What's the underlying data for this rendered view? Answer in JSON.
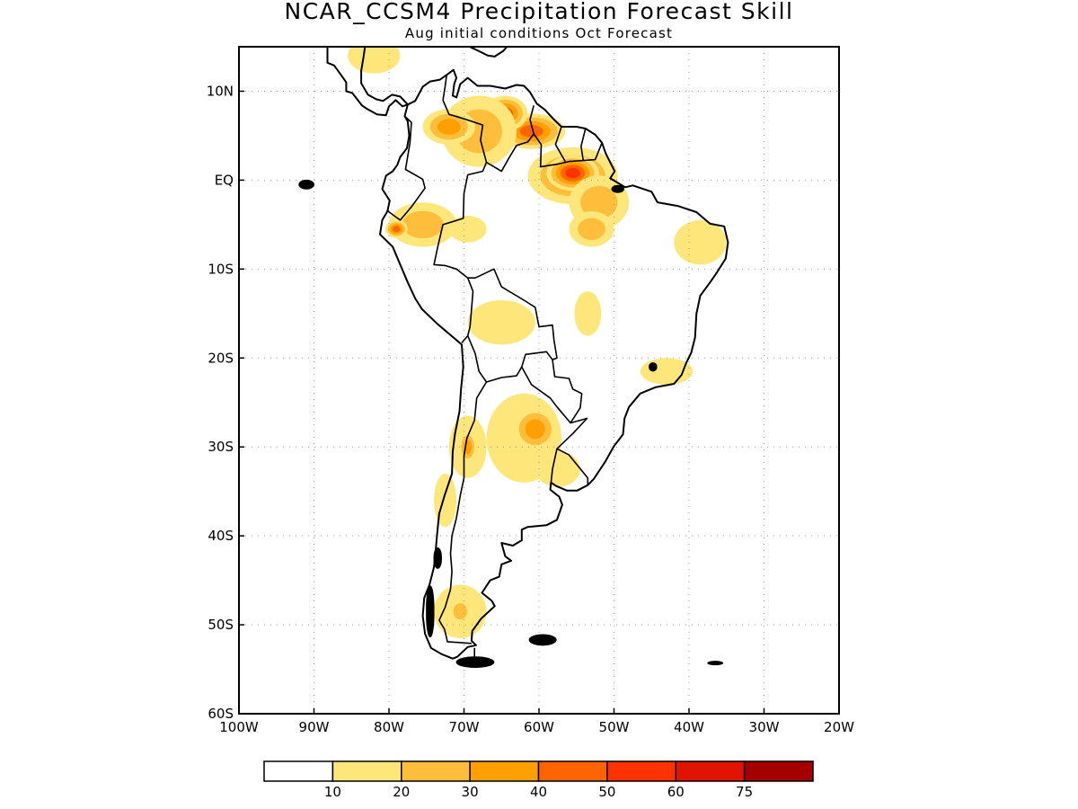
{
  "title": "NCAR_CCSM4 Precipitation Forecast Skill",
  "subtitle": "Aug initial conditions  Oct Forecast",
  "map": {
    "lon_range": [
      -100,
      -20
    ],
    "lat_range": [
      -60,
      15
    ],
    "gridlines": "dotted",
    "x_ticks": [
      {
        "lon": -100,
        "label": "100W"
      },
      {
        "lon": -90,
        "label": "90W"
      },
      {
        "lon": -80,
        "label": "80W"
      },
      {
        "lon": -70,
        "label": "70W"
      },
      {
        "lon": -60,
        "label": "60W"
      },
      {
        "lon": -50,
        "label": "50W"
      },
      {
        "lon": -40,
        "label": "40W"
      },
      {
        "lon": -30,
        "label": "30W"
      },
      {
        "lon": -20,
        "label": "20W"
      }
    ],
    "y_ticks": [
      {
        "lat": 10,
        "label": "10N"
      },
      {
        "lat": 0,
        "label": "EQ"
      },
      {
        "lat": -10,
        "label": "10S"
      },
      {
        "lat": -20,
        "label": "20S"
      },
      {
        "lat": -30,
        "label": "30S"
      },
      {
        "lat": -40,
        "label": "40S"
      },
      {
        "lat": -50,
        "label": "50S"
      },
      {
        "lat": -60,
        "label": "60S"
      }
    ]
  },
  "colorbar": {
    "colors": [
      "#ffffff",
      "#ffe67a",
      "#ffbd3c",
      "#ffa000",
      "#ff6400",
      "#ff3200",
      "#e01400",
      "#a50000"
    ],
    "labels": [
      "10",
      "20",
      "30",
      "40",
      "50",
      "60",
      "75"
    ]
  },
  "skill_regions": [
    {
      "lon": -55.5,
      "lat": 0.5,
      "rx": 6.0,
      "ry": 3.2,
      "level": 3
    },
    {
      "lon": -55.5,
      "lat": 0.8,
      "rx": 3.5,
      "ry": 2.0,
      "level": 5
    },
    {
      "lon": -61.0,
      "lat": 5.5,
      "rx": 4.5,
      "ry": 2.0,
      "level": 4
    },
    {
      "lon": -64.5,
      "lat": 7.5,
      "rx": 3.0,
      "ry": 2.0,
      "level": 4
    },
    {
      "lon": -68.0,
      "lat": 5.5,
      "rx": 5.0,
      "ry": 4.0,
      "level": 2
    },
    {
      "lon": -72.0,
      "lat": 6.0,
      "rx": 3.5,
      "ry": 2.0,
      "level": 3
    },
    {
      "lon": -52.0,
      "lat": -2.5,
      "rx": 4.0,
      "ry": 3.0,
      "level": 2
    },
    {
      "lon": -53.0,
      "lat": -5.5,
      "rx": 3.0,
      "ry": 2.0,
      "level": 2
    },
    {
      "lon": -75.5,
      "lat": -5.0,
      "rx": 4.5,
      "ry": 2.5,
      "level": 2
    },
    {
      "lon": -79.0,
      "lat": -5.5,
      "rx": 1.5,
      "ry": 1.0,
      "level": 4
    },
    {
      "lon": -69.5,
      "lat": -5.5,
      "rx": 2.5,
      "ry": 1.5,
      "level": 1
    },
    {
      "lon": -38.5,
      "lat": -7.0,
      "rx": 3.5,
      "ry": 2.5,
      "level": 1
    },
    {
      "lon": -53.5,
      "lat": -15.0,
      "rx": 1.8,
      "ry": 2.5,
      "level": 1
    },
    {
      "lon": -65.0,
      "lat": -16.0,
      "rx": 4.5,
      "ry": 2.5,
      "level": 1
    },
    {
      "lon": -43.0,
      "lat": -21.5,
      "rx": 3.5,
      "ry": 1.5,
      "level": 1
    },
    {
      "lon": -62.0,
      "lat": -29.0,
      "rx": 5.0,
      "ry": 5.0,
      "level": 1
    },
    {
      "lon": -60.5,
      "lat": -28.0,
      "rx": 3.0,
      "ry": 2.5,
      "level": 3
    },
    {
      "lon": -69.5,
      "lat": -30.0,
      "rx": 2.5,
      "ry": 3.5,
      "level": 1
    },
    {
      "lon": -69.5,
      "lat": -30.0,
      "rx": 1.2,
      "ry": 1.8,
      "level": 3
    },
    {
      "lon": -72.5,
      "lat": -36.0,
      "rx": 1.5,
      "ry": 3.0,
      "level": 1
    },
    {
      "lon": -70.5,
      "lat": -48.5,
      "rx": 3.5,
      "ry": 3.0,
      "level": 1
    },
    {
      "lon": -70.5,
      "lat": -48.5,
      "rx": 1.5,
      "ry": 1.5,
      "level": 2
    },
    {
      "lon": -82.0,
      "lat": 14.0,
      "rx": 3.5,
      "ry": 2.0,
      "level": 1
    },
    {
      "lon": -57.5,
      "lat": -32.5,
      "rx": 3.0,
      "ry": 2.0,
      "level": 1
    }
  ]
}
